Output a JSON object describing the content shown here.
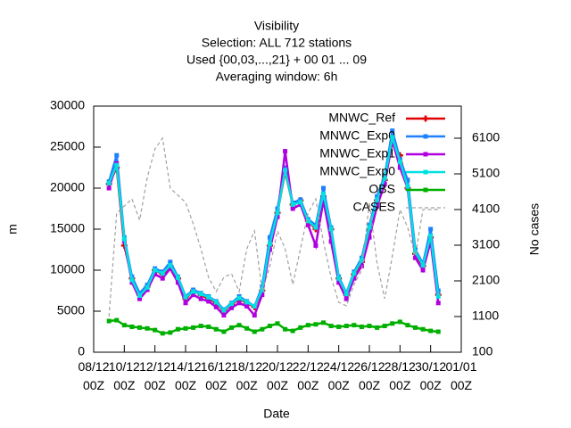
{
  "chart_data": {
    "type": "line",
    "title": [
      "Visibility",
      "Selection: ALL    712 stations",
      "Used {00,03,...,21} + 00 01 ... 09",
      "Averaging window:  6h"
    ],
    "xlabel": "Date",
    "ylabel": "m",
    "y2label": "No cases",
    "xlim": [
      0,
      24
    ],
    "xticks": [
      {
        "value": 0,
        "label": "08/12\n00Z"
      },
      {
        "value": 2,
        "label": "10/12\n00Z"
      },
      {
        "value": 4,
        "label": "12/12\n00Z"
      },
      {
        "value": 6,
        "label": "14/12\n00Z"
      },
      {
        "value": 8,
        "label": "16/12\n00Z"
      },
      {
        "value": 10,
        "label": "18/12\n00Z"
      },
      {
        "value": 12,
        "label": "20/12\n00Z"
      },
      {
        "value": 14,
        "label": "22/12\n00Z"
      },
      {
        "value": 16,
        "label": "24/12\n00Z"
      },
      {
        "value": 18,
        "label": "26/12\n00Z"
      },
      {
        "value": 20,
        "label": "28/12\n00Z"
      },
      {
        "value": 22,
        "label": "30/12\n00Z"
      },
      {
        "value": 24,
        "label": "01/01\n00Z"
      }
    ],
    "ylim": [
      0,
      30000
    ],
    "yticks": [
      0,
      5000,
      10000,
      15000,
      20000,
      25000,
      30000
    ],
    "y2lim": [
      100,
      7000
    ],
    "y2ticks": [
      100,
      1100,
      2100,
      3100,
      4100,
      5100,
      6100
    ],
    "legend": "upper right",
    "x": [
      1.0,
      1.5,
      2.0,
      2.5,
      3.0,
      3.5,
      4.0,
      4.5,
      5.0,
      5.5,
      6.0,
      6.5,
      7.0,
      7.5,
      8.0,
      8.5,
      9.0,
      9.5,
      10.0,
      10.5,
      11.0,
      11.5,
      12.0,
      12.5,
      13.0,
      13.5,
      14.0,
      14.5,
      15.0,
      15.5,
      16.0,
      16.5,
      17.0,
      17.5,
      18.0,
      18.5,
      19.0,
      19.5,
      20.0,
      20.5,
      21.0,
      21.5,
      22.0,
      22.5
    ],
    "series": [
      {
        "name": "MNWC_Ref",
        "color": "#e00000",
        "marker": "plus",
        "values": [
          20500,
          22500,
          13000,
          9000,
          7000,
          8000,
          10000,
          9500,
          10500,
          9000,
          6500,
          7500,
          7000,
          6500,
          6000,
          5000,
          5800,
          6500,
          6000,
          5500,
          7500,
          13000,
          17000,
          22000,
          18000,
          18500,
          16000,
          15000,
          19000,
          15000,
          9000,
          7000,
          9500,
          11000,
          15000,
          18500,
          21000,
          25500,
          24000,
          20000,
          12000,
          10500,
          14000,
          7000
        ]
      },
      {
        "name": "MNWC_Exp0",
        "color": "#1e7fff",
        "marker": "square",
        "values": [
          20800,
          24000,
          14000,
          9200,
          7200,
          8200,
          10200,
          9800,
          11000,
          9200,
          6800,
          7600,
          7200,
          6800,
          6200,
          5200,
          6000,
          6800,
          6200,
          5600,
          8000,
          14000,
          17500,
          22500,
          18200,
          18600,
          16200,
          15500,
          20000,
          15200,
          9200,
          7200,
          9800,
          11500,
          15500,
          19000,
          21500,
          27000,
          23500,
          21000,
          12500,
          10800,
          15000,
          7500
        ]
      },
      {
        "name": "MNWC_Exp1",
        "color": "#b000e0",
        "marker": "square",
        "values": [
          20000,
          23000,
          13500,
          8500,
          6500,
          7600,
          9500,
          9000,
          10200,
          8500,
          6000,
          7000,
          6500,
          6200,
          5500,
          4500,
          5400,
          6000,
          5600,
          4500,
          7000,
          12500,
          16500,
          24500,
          17500,
          18000,
          15500,
          13000,
          18500,
          13500,
          8500,
          6500,
          9000,
          10500,
          14000,
          17800,
          20500,
          25800,
          22500,
          20000,
          11500,
          10000,
          13500,
          6000
        ]
      },
      {
        "name": "MNWC_Exp0",
        "color": "#00e0e0",
        "marker": "square",
        "values": [
          20600,
          22800,
          13800,
          8800,
          6900,
          7900,
          10000,
          9600,
          10600,
          9100,
          6700,
          7400,
          7100,
          6700,
          6100,
          5100,
          5900,
          6600,
          6100,
          5600,
          7600,
          13200,
          17000,
          22200,
          18000,
          18300,
          16000,
          15200,
          19300,
          15000,
          9000,
          7100,
          9600,
          11200,
          15200,
          18600,
          21200,
          26200,
          23200,
          20200,
          12200,
          10600,
          14200,
          6800
        ]
      },
      {
        "name": "OBS",
        "color": "#00b000",
        "marker": "square",
        "values": [
          3800,
          3900,
          3300,
          3100,
          3000,
          2900,
          2700,
          2300,
          2400,
          2800,
          2900,
          3000,
          3200,
          3100,
          2800,
          2500,
          3000,
          3300,
          2900,
          2500,
          2800,
          3200,
          3500,
          2800,
          2600,
          3000,
          3300,
          3400,
          3600,
          3200,
          3100,
          3200,
          3300,
          3100,
          3200,
          3000,
          3200,
          3500,
          3700,
          3300,
          3000,
          2800,
          2600,
          2500
        ]
      },
      {
        "name": "CASES",
        "color": "#a0a0a0",
        "marker": "none",
        "dashed": true,
        "axis": "y2",
        "values": [
          1100,
          4000,
          4200,
          4400,
          3800,
          5000,
          5800,
          6100,
          4700,
          4500,
          4300,
          3700,
          3000,
          2200,
          1800,
          2200,
          2300,
          1800,
          3000,
          3500,
          1800,
          2500,
          3500,
          3000,
          2000,
          3000,
          4000,
          4400,
          3200,
          2200,
          1500,
          1400,
          2000,
          2400,
          4300,
          2600,
          1600,
          2800,
          4100,
          3600,
          2800,
          4100,
          4100,
          4100
        ]
      }
    ]
  }
}
